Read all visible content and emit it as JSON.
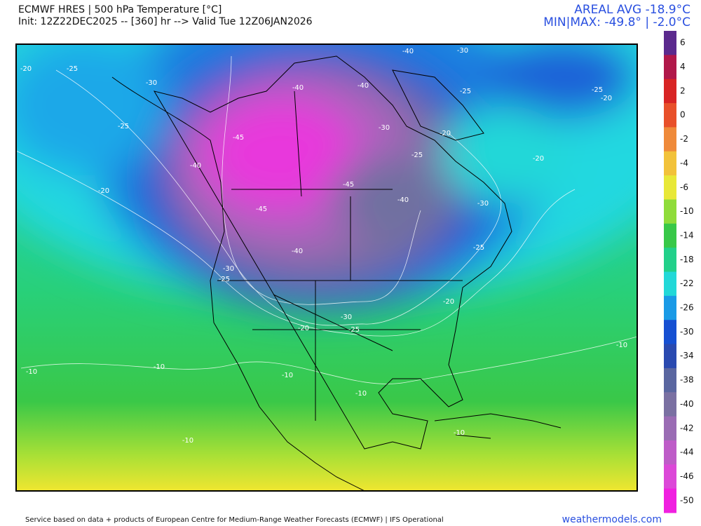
{
  "header": {
    "title": "ECMWF HRES | 500 hPa Temperature [°C]",
    "subtitle": "Init: 12Z22DEC2025 -- [360] hr --> Valid Tue 12Z06JAN2026",
    "areal_avg": "AREAL AVG -18.9°C",
    "min_max": "MIN|MAX: -49.8° | -2.0°C"
  },
  "colorbar": {
    "labels": [
      6,
      4,
      2,
      0,
      -2,
      -4,
      -6,
      -10,
      -14,
      -18,
      -22,
      -26,
      -30,
      -34,
      -38,
      -40,
      -42,
      -44,
      -46,
      -50
    ],
    "colors": [
      "#5b2a8e",
      "#b0184a",
      "#d82424",
      "#e8502a",
      "#ef8a3a",
      "#f2c23a",
      "#e8e838",
      "#8fdc3a",
      "#38c848",
      "#22d08a",
      "#22d8d8",
      "#1a9ae6",
      "#1650d2",
      "#2a4ab0",
      "#5a66a0",
      "#7a70a2",
      "#9a6cb4",
      "#be5cc8",
      "#dc48d8",
      "#f020e0"
    ]
  },
  "contour_labels": [
    -20,
    -25,
    -30,
    -25,
    -40,
    -45,
    -20,
    -45,
    -40,
    -30,
    -25,
    -45,
    -40,
    -30,
    -25,
    -40,
    -40,
    -40,
    -30,
    -25,
    -20,
    -20,
    -25,
    -20,
    -30,
    -25,
    -20,
    -30,
    -25,
    -20,
    -10,
    -10,
    -10,
    -10,
    -10,
    -10,
    -10
  ],
  "footer": {
    "credit": "Service based on data + products of European Centre for Medium-Range Weather Forecasts (ECMWF) | IFS Operational",
    "site": "weathermodels.com"
  }
}
